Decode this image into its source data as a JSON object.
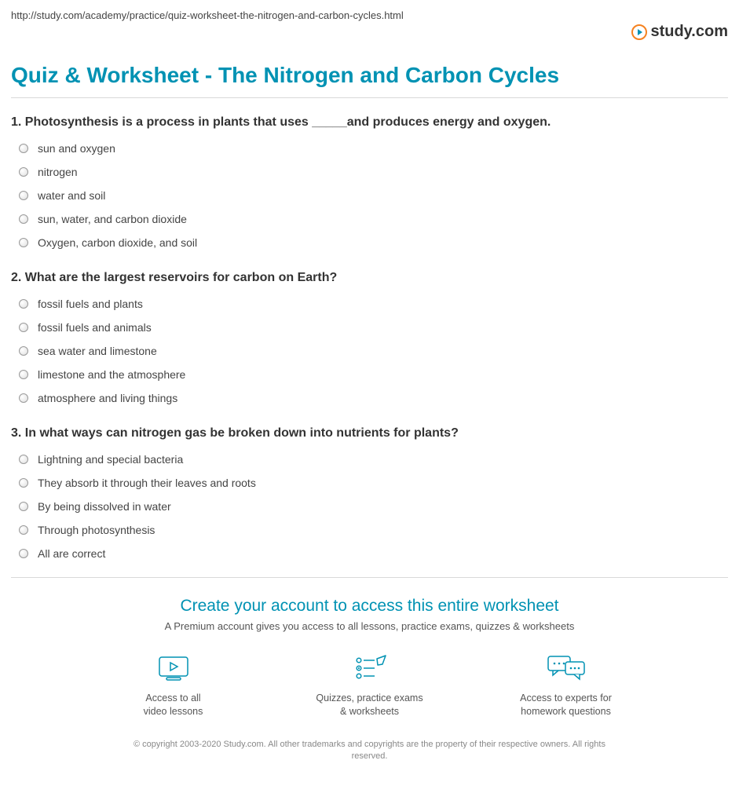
{
  "url": "http://study.com/academy/practice/quiz-worksheet-the-nitrogen-and-carbon-cycles.html",
  "logo": {
    "text": "study.com",
    "accent_color": "#f58220",
    "secondary_color": "#0092b3"
  },
  "page_title": "Quiz & Worksheet - The Nitrogen and Carbon Cycles",
  "title_color": "#0092b3",
  "questions": [
    {
      "number": "1.",
      "prompt": "Photosynthesis is a process in plants that uses _____and produces energy and oxygen.",
      "options": [
        "sun and oxygen",
        "nitrogen",
        "water and soil",
        "sun, water, and carbon dioxide",
        "Oxygen, carbon dioxide, and soil"
      ]
    },
    {
      "number": "2.",
      "prompt": "What are the largest reservoirs for carbon on Earth?",
      "options": [
        "fossil fuels and plants",
        "fossil fuels and animals",
        "sea water and limestone",
        "limestone and the atmosphere",
        "atmosphere and living things"
      ]
    },
    {
      "number": "3.",
      "prompt": "In what ways can nitrogen gas be broken down into nutrients for plants?",
      "options": [
        "Lightning and special bacteria",
        "They absorb it through their leaves and roots",
        "By being dissolved in water",
        "Through photosynthesis",
        "All are correct"
      ]
    }
  ],
  "cta": {
    "title": "Create your account to access this entire worksheet",
    "subtitle": "A Premium account gives you access to all lessons, practice exams, quizzes & worksheets",
    "benefits": [
      {
        "icon": "video",
        "line1": "Access to all",
        "line2": "video lessons"
      },
      {
        "icon": "quiz",
        "line1": "Quizzes, practice exams",
        "line2": "& worksheets"
      },
      {
        "icon": "chat",
        "line1": "Access to experts for",
        "line2": "homework questions"
      }
    ],
    "accent_color": "#0092b3"
  },
  "copyright": "© copyright 2003-2020 Study.com. All other trademarks and copyrights are the property of their respective owners. All rights reserved."
}
